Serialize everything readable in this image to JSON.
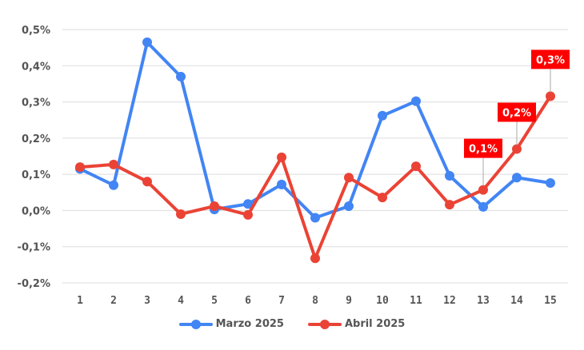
{
  "chart_data": {
    "type": "line",
    "title": "",
    "xlabel": "",
    "ylabel": "",
    "x": [
      1,
      2,
      3,
      4,
      5,
      6,
      7,
      8,
      9,
      10,
      11,
      12,
      13,
      14,
      15
    ],
    "categories": [
      "1",
      "2",
      "3",
      "4",
      "5",
      "6",
      "7",
      "8",
      "9",
      "10",
      "11",
      "12",
      "13",
      "14",
      "15"
    ],
    "ylim": [
      -0.2,
      0.5
    ],
    "yticks": [
      -0.2,
      -0.1,
      0.0,
      0.1,
      0.2,
      0.3,
      0.4,
      0.5
    ],
    "ytick_labels": [
      "-0,2%",
      "-0,1%",
      "0,0%",
      "0,1%",
      "0,2%",
      "0,3%",
      "0,4%",
      "0,5%"
    ],
    "grid": true,
    "legend_position": "bottom",
    "series": [
      {
        "name": "Marzo 2025",
        "color": "#4285f4",
        "values": [
          0.115,
          0.07,
          0.465,
          0.37,
          0.003,
          0.018,
          0.072,
          -0.02,
          0.012,
          0.262,
          0.302,
          0.096,
          0.01,
          0.091,
          0.076
        ]
      },
      {
        "name": "Abril 2025",
        "color": "#ea4335",
        "values": [
          0.12,
          0.127,
          0.08,
          -0.01,
          0.012,
          -0.012,
          0.147,
          -0.132,
          0.091,
          0.036,
          0.122,
          0.016,
          0.057,
          0.17,
          0.316
        ]
      }
    ],
    "annotations": [
      {
        "series": "Abril 2025",
        "x": 13,
        "text": "0,1%",
        "background": "#ff0000"
      },
      {
        "series": "Abril 2025",
        "x": 14,
        "text": "0,2%",
        "background": "#ff0000"
      },
      {
        "series": "Abril 2025",
        "x": 15,
        "text": "0,3%",
        "background": "#ff0000"
      }
    ]
  },
  "legend": {
    "items": [
      {
        "label": "Marzo 2025",
        "color": "#4285f4"
      },
      {
        "label": "Abril 2025",
        "color": "#ea4335"
      }
    ]
  }
}
